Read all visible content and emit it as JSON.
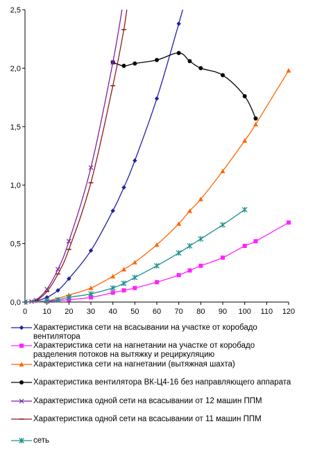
{
  "chart_data": {
    "type": "line",
    "title": "",
    "xlabel": "",
    "ylabel": "",
    "xlim": [
      0,
      120
    ],
    "ylim": [
      0,
      2.5
    ],
    "x_ticks": [
      "0",
      "10",
      "20",
      "30",
      "40",
      "50",
      "60",
      "70",
      "80",
      "90",
      "100",
      "110",
      "120"
    ],
    "y_ticks": [
      "0,0",
      "0,5",
      "1,0",
      "1,5",
      "2,0",
      "2,5"
    ],
    "grid": "none",
    "legend": "bottom",
    "series": [
      {
        "name": "Характеристика сети на всасывании на участке  от коробадо вентилятора",
        "color": "#1f1fa0",
        "marker": "diamond",
        "points": [
          [
            0,
            0
          ],
          [
            5,
            0.01
          ],
          [
            10,
            0.04
          ],
          [
            15,
            0.1
          ],
          [
            20,
            0.2
          ],
          [
            30,
            0.44
          ],
          [
            40,
            0.78
          ],
          [
            45,
            0.98
          ],
          [
            50,
            1.21
          ],
          [
            60,
            1.74
          ],
          [
            70,
            2.38
          ],
          [
            75,
            2.72
          ]
        ]
      },
      {
        "name": "Характеристика сети на нагнетании на участке  от коробадо разделения потоков на вытяжку и рециркуляцию",
        "color": "#ff22ff",
        "marker": "square",
        "points": [
          [
            0,
            0
          ],
          [
            10,
            0.005
          ],
          [
            20,
            0.02
          ],
          [
            30,
            0.04
          ],
          [
            40,
            0.08
          ],
          [
            45,
            0.1
          ],
          [
            50,
            0.12
          ],
          [
            60,
            0.17
          ],
          [
            70,
            0.23
          ],
          [
            75,
            0.27
          ],
          [
            80,
            0.31
          ],
          [
            90,
            0.38
          ],
          [
            100,
            0.48
          ],
          [
            105,
            0.52
          ],
          [
            120,
            0.68
          ]
        ]
      },
      {
        "name": "Характеристика сети на нагнетании (вытяжная шахта)",
        "color": "#ff6600",
        "marker": "triangle",
        "points": [
          [
            0,
            0
          ],
          [
            10,
            0.01
          ],
          [
            20,
            0.06
          ],
          [
            30,
            0.12
          ],
          [
            40,
            0.22
          ],
          [
            45,
            0.28
          ],
          [
            50,
            0.34
          ],
          [
            60,
            0.49
          ],
          [
            70,
            0.67
          ],
          [
            75,
            0.78
          ],
          [
            80,
            0.88
          ],
          [
            90,
            1.12
          ],
          [
            100,
            1.38
          ],
          [
            105,
            1.52
          ],
          [
            120,
            1.98
          ]
        ]
      },
      {
        "name": "Характеристика вентилятора ВК-Ц4-16 без направляющего аппарата",
        "color": "#000000",
        "marker": "circle",
        "points": [
          [
            40,
            2.05
          ],
          [
            45,
            2.02
          ],
          [
            50,
            2.04
          ],
          [
            60,
            2.07
          ],
          [
            70,
            2.13
          ],
          [
            75,
            2.06
          ],
          [
            80,
            2.0
          ],
          [
            90,
            1.94
          ],
          [
            100,
            1.76
          ],
          [
            105,
            1.57
          ]
        ]
      },
      {
        "name": "Характеристика одной сети на всасывании от 12 машин ППМ",
        "color": "#7f1f9f",
        "marker": "x",
        "points": [
          [
            0,
            0
          ],
          [
            3,
            0.005
          ],
          [
            5,
            0.015
          ],
          [
            10,
            0.11
          ],
          [
            15,
            0.28
          ],
          [
            20,
            0.52
          ],
          [
            30,
            1.15
          ],
          [
            40,
            2.05
          ],
          [
            45,
            2.6
          ]
        ]
      },
      {
        "name": "Характеристика одной сети на всасывании от 11 машин ППМ",
        "color": "#8b1a1a",
        "marker": "dash",
        "points": [
          [
            0,
            0
          ],
          [
            3,
            0.005
          ],
          [
            5,
            0.01
          ],
          [
            10,
            0.09
          ],
          [
            15,
            0.24
          ],
          [
            20,
            0.45
          ],
          [
            30,
            1.02
          ],
          [
            40,
            1.85
          ],
          [
            45,
            2.33
          ],
          [
            47,
            2.6
          ]
        ]
      },
      {
        "name": "сеть",
        "color": "#1f8f8f",
        "marker": "star",
        "points": [
          [
            0,
            0
          ],
          [
            10,
            0.01
          ],
          [
            15,
            0.02
          ],
          [
            20,
            0.04
          ],
          [
            30,
            0.07
          ],
          [
            40,
            0.12
          ],
          [
            45,
            0.16
          ],
          [
            50,
            0.21
          ],
          [
            60,
            0.31
          ],
          [
            70,
            0.42
          ],
          [
            75,
            0.48
          ],
          [
            80,
            0.54
          ],
          [
            90,
            0.66
          ],
          [
            100,
            0.79
          ]
        ]
      }
    ]
  }
}
